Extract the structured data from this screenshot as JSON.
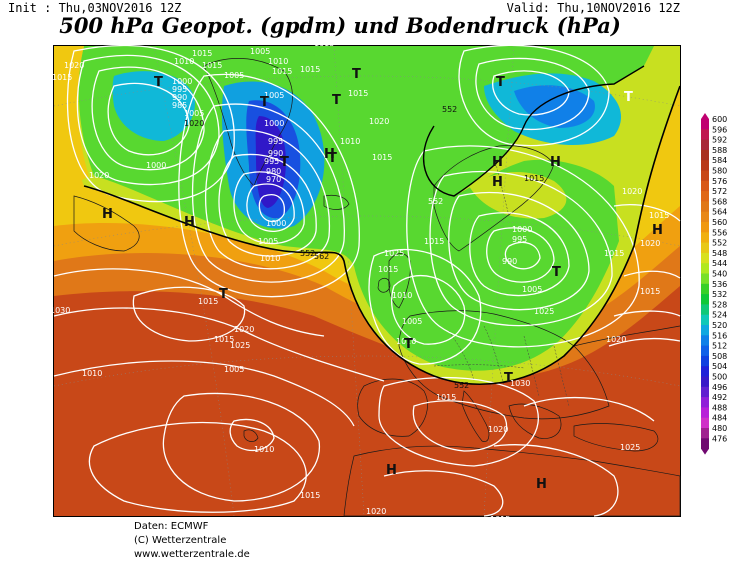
{
  "header": {
    "init": "Init : Thu,03NOV2016 12Z",
    "valid": "Valid: Thu,10NOV2016 12Z",
    "title": "500 hPa Geopot. (gpdm) und Bodendruck (hPa)"
  },
  "colorbar": {
    "levels": [
      "600",
      "596",
      "592",
      "588",
      "584",
      "580",
      "576",
      "572",
      "568",
      "564",
      "560",
      "556",
      "552",
      "548",
      "544",
      "540",
      "536",
      "532",
      "528",
      "524",
      "520",
      "516",
      "512",
      "508",
      "504",
      "500",
      "496",
      "492",
      "488",
      "484",
      "480",
      "476"
    ],
    "colors": [
      "#c00070",
      "#c01850",
      "#a82838",
      "#a83020",
      "#b83818",
      "#c84818",
      "#d85818",
      "#e06818",
      "#e07818",
      "#e88818",
      "#f09810",
      "#f0b010",
      "#e8c818",
      "#d8e020",
      "#b0e820",
      "#78e028",
      "#38d028",
      "#10c838",
      "#10c878",
      "#10c8b8",
      "#10a8e0",
      "#1080e8",
      "#1060e8",
      "#1040e0",
      "#2020d8",
      "#3818c8",
      "#6020d0",
      "#9020d8",
      "#b820d8",
      "#d030c8",
      "#a02090",
      "#700870"
    ]
  },
  "map": {
    "isobar_labels": [
      "1015",
      "1020",
      "1020",
      "1015",
      "1010",
      "1000",
      "995",
      "990",
      "985",
      "1005",
      "1005",
      "1010",
      "1015",
      "1015",
      "1015",
      "1015",
      "1005",
      "1000",
      "995",
      "990",
      "995",
      "980",
      "970",
      "1000",
      "1005",
      "1010",
      "1015",
      "1020",
      "1015",
      "1005",
      "552",
      "1000",
      "1005",
      "1010",
      "1015",
      "1020",
      "1025",
      "1015",
      "1010",
      "1005",
      "1000",
      "995",
      "990",
      "1005",
      "1015",
      "1020",
      "1015",
      "1020",
      "1015",
      "1020",
      "1025",
      "1010",
      "1015",
      "1020",
      "1015",
      "1020",
      "1025",
      "1030",
      "1010",
      "1015",
      "1025",
      "1030",
      "1010",
      "1015",
      "1020",
      "1015",
      "552",
      "552",
      "562",
      "552",
      "1015"
    ],
    "center_labels": [
      "T",
      "T",
      "T",
      "T",
      "T",
      "T",
      "T",
      "T",
      "T",
      "T",
      "T",
      "T",
      "H",
      "H",
      "H",
      "H",
      "H",
      "H",
      "H",
      "H",
      "H"
    ]
  },
  "credits": [
    "Daten: ECMWF",
    "(C) Wetterzentrale",
    "www.wetterzentrale.de"
  ]
}
